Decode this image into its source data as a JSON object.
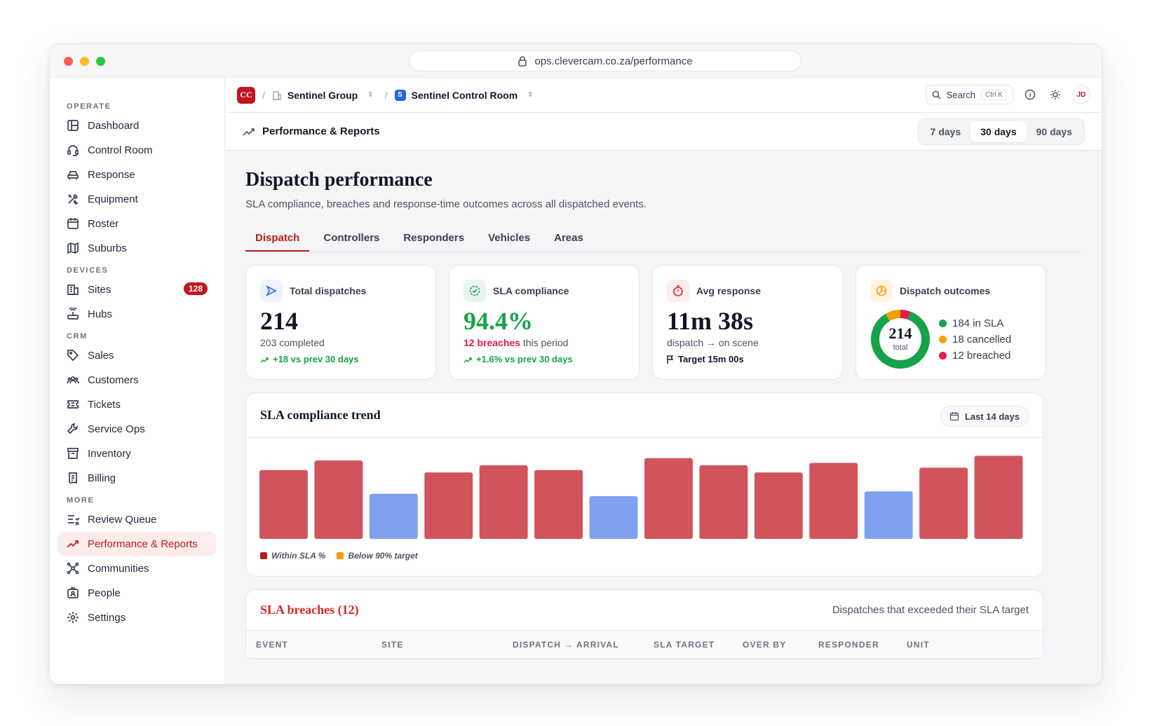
{
  "browser": {
    "url": "ops.clevercam.co.za/performance"
  },
  "sidebar": {
    "sections": [
      {
        "label": "OPERATE",
        "items": [
          "Dashboard",
          "Control Room",
          "Response",
          "Equipment",
          "Roster",
          "Suburbs"
        ]
      },
      {
        "label": "DEVICES",
        "items": [
          "Sites",
          "Hubs"
        ]
      },
      {
        "label": "CRM",
        "items": [
          "Sales",
          "Customers",
          "Tickets",
          "Service Ops",
          "Inventory",
          "Billing"
        ]
      },
      {
        "label": "MORE",
        "items": [
          "Review Queue",
          "Performance & Reports",
          "Communities",
          "People",
          "Settings"
        ]
      }
    ],
    "sites_badge": "128",
    "active_item": "Performance & Reports"
  },
  "topbar": {
    "org_logo": "CC",
    "org_name": "Sentinel Group",
    "room_logo": "S",
    "room_name": "Sentinel Control Room",
    "search_label": "Search",
    "search_shortcut": "Ctrl K",
    "avatar": "JD"
  },
  "page_header": {
    "title": "Performance & Reports",
    "ranges": [
      "7 days",
      "30 days",
      "90 days"
    ],
    "active_range": "30 days"
  },
  "page": {
    "title": "Dispatch performance",
    "subtitle": "SLA compliance, breaches and response-time outcomes across all dispatched events.",
    "tabs": [
      "Dispatch",
      "Controllers",
      "Responders",
      "Vehicles",
      "Areas"
    ],
    "active_tab": "Dispatch"
  },
  "cards": {
    "total": {
      "label": "Total dispatches",
      "value": "214",
      "sub": "203 completed",
      "delta": "+18 vs prev 30 days"
    },
    "sla": {
      "label": "SLA compliance",
      "value": "94.4%",
      "breaches": "12 breaches",
      "breaches_suffix": " this period",
      "delta": "+1.6% vs prev 30 days"
    },
    "avg": {
      "label": "Avg response",
      "value": "11m 38s",
      "sub": "dispatch → on scene",
      "target": "Target 15m 00s"
    },
    "outcomes": {
      "label": "Dispatch outcomes",
      "total": "214",
      "total_label": "total",
      "in_sla": "184 in SLA",
      "cancelled": "18 cancelled",
      "breached": "12 breached",
      "in_sla_n": 184,
      "cancelled_n": 18,
      "breached_n": 12
    }
  },
  "colors": {
    "accent": "#b91c1c",
    "green": "#16a34a",
    "orange": "#f59e0b",
    "red": "#e11d48",
    "bar_red": "#d1545d",
    "bar_blue": "#7ea2f0"
  },
  "chart_data": {
    "type": "bar",
    "title": "SLA compliance trend",
    "range_label": "Last 14 days",
    "legend": [
      "Within SLA %",
      "Below 90% target"
    ],
    "values": [
      94.5,
      96.5,
      89.5,
      94,
      95.5,
      94.5,
      89,
      97,
      95.5,
      94,
      96,
      90,
      95,
      97.5
    ],
    "below_target": [
      false,
      false,
      true,
      false,
      false,
      false,
      true,
      false,
      false,
      false,
      false,
      true,
      false,
      false
    ],
    "ylim": [
      80,
      98
    ],
    "grid": false
  },
  "breaches": {
    "title": "SLA breaches (12)",
    "description": "Dispatches that exceeded their SLA target",
    "columns": [
      "EVENT",
      "SITE",
      "DISPATCH → ARRIVAL",
      "SLA TARGET",
      "OVER BY",
      "RESPONDER",
      "UNIT"
    ]
  }
}
